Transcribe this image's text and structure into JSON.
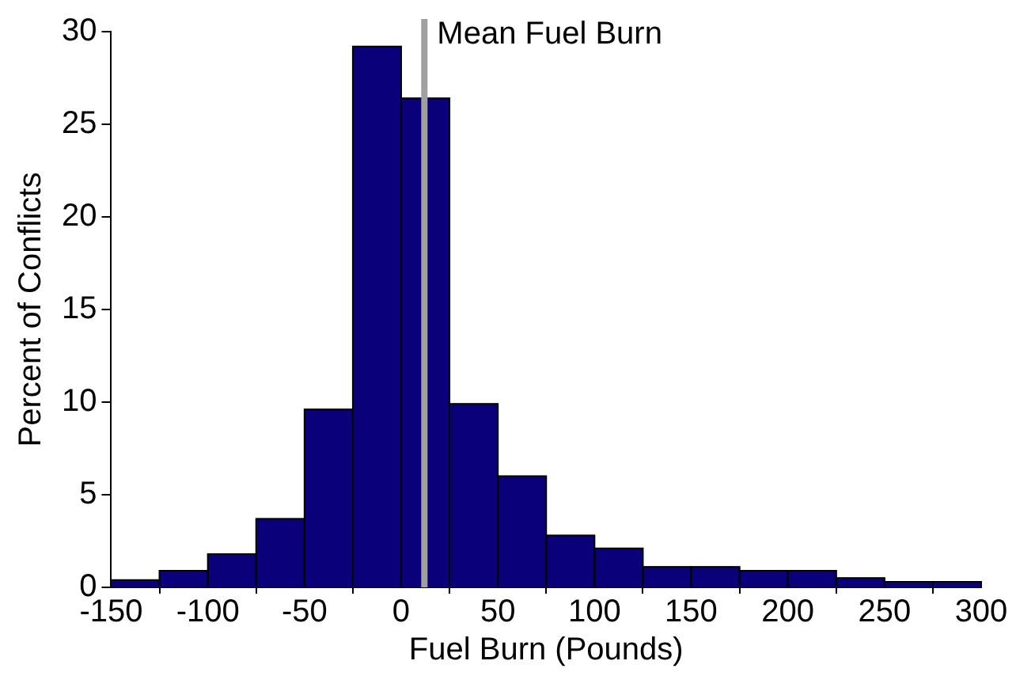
{
  "chart_data": {
    "type": "histogram",
    "xlabel": "Fuel Burn (Pounds)",
    "ylabel": "Percent of Conflicts",
    "bins": [
      -150,
      -125,
      -100,
      -75,
      -50,
      -25,
      0,
      25,
      50,
      75,
      100,
      125,
      150,
      175,
      200,
      225,
      250,
      275,
      300
    ],
    "values": [
      0.4,
      0.9,
      1.8,
      3.7,
      9.6,
      29.2,
      26.4,
      9.9,
      6.0,
      2.8,
      2.1,
      1.1,
      1.1,
      0.9,
      0.9,
      0.5,
      0.3,
      0.3
    ],
    "color": "#0a007a",
    "xlim": [
      -150,
      300
    ],
    "xticks": [
      -150,
      -100,
      -50,
      0,
      50,
      100,
      150,
      200,
      250,
      300
    ],
    "ylim": [
      0,
      30
    ],
    "yticks": [
      0,
      5,
      10,
      15,
      20,
      25,
      30
    ],
    "ref_lines": [
      {
        "axis": "x",
        "value": 12,
        "label": "Mean Fuel Burn",
        "color": "#a0a0a0"
      }
    ],
    "grid": false,
    "legend": false
  }
}
